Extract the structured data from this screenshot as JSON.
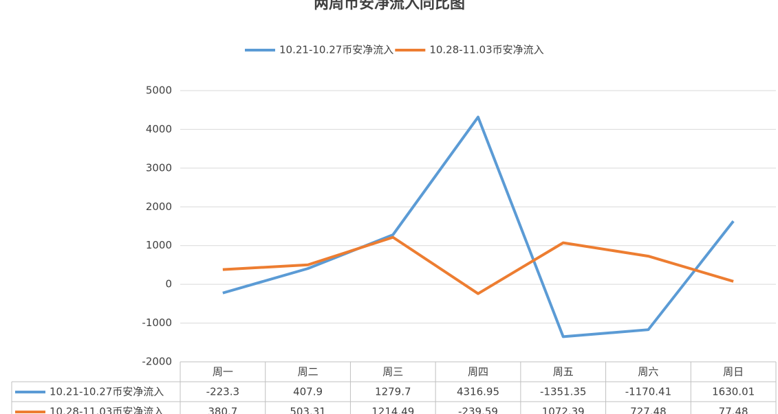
{
  "chart_data": {
    "type": "line",
    "title": "两周币安净流入同比图",
    "categories": [
      "周一",
      "周二",
      "周三",
      "周四",
      "周五",
      "周六",
      "周日"
    ],
    "series": [
      {
        "name": "10.21-10.27币安净流入",
        "color": "#5b9bd5",
        "values": [
          -223.3,
          407.9,
          1279.7,
          4316.95,
          -1351.35,
          -1170.41,
          1630.01
        ]
      },
      {
        "name": "10.28-11.03币安净流入",
        "color": "#ed7d31",
        "values": [
          380.7,
          503.31,
          1214.49,
          -239.59,
          1072.39,
          727.48,
          77.48
        ]
      }
    ],
    "ylim": [
      -2000,
      5000
    ],
    "yticks": [
      -2000,
      -1000,
      0,
      1000,
      2000,
      3000,
      4000,
      5000
    ],
    "grid": true,
    "legend": "top"
  }
}
